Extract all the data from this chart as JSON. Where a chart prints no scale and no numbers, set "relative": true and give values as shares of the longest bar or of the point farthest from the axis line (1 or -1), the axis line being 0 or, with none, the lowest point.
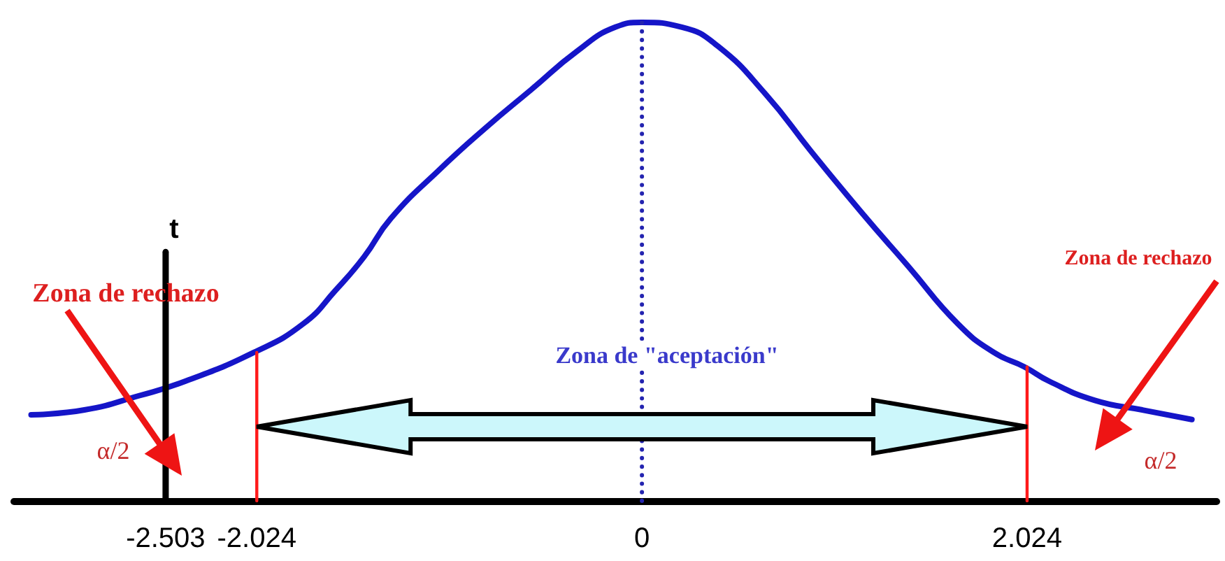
{
  "chart_data": {
    "type": "line",
    "relative": true,
    "marker": "none",
    "xlim": [
      -3.3,
      3.02
    ],
    "xticks": [
      -2.503,
      -2.024,
      0,
      2.024
    ],
    "series": [
      {
        "color": "#1515c8",
        "x": [
          -3.21,
          -2.93,
          -2.64,
          -2.4,
          -2.04,
          -1.78,
          -1.61,
          -1.46,
          -1.32,
          -1.07,
          -0.82,
          -0.58,
          -0.34,
          -0.14,
          0,
          0.21,
          0.4,
          0.65,
          0.89,
          1.16,
          1.4,
          1.66,
          1.85,
          2.01,
          2.14,
          2.38,
          2.63,
          2.89
        ],
        "values": [
          0.18,
          0.19,
          0.22,
          0.25,
          0.31,
          0.37,
          0.44,
          0.51,
          0.59,
          0.69,
          0.78,
          0.86,
          0.94,
          0.99,
          1,
          0.99,
          0.95,
          0.85,
          0.73,
          0.6,
          0.49,
          0.37,
          0.31,
          0.28,
          0.25,
          0.21,
          0.19,
          0.17
        ]
      },
      {
        "color": "#2424b0",
        "line_style": "dotted",
        "x": [
          0,
          0
        ],
        "values": [
          0,
          1
        ]
      },
      {
        "color": "#ff1a1a",
        "x": [
          -2.024,
          -2.024
        ],
        "values": [
          0,
          0.31
        ]
      },
      {
        "color": "#ff1a1a",
        "x": [
          2.024,
          2.024
        ],
        "values": [
          0,
          0.28
        ]
      },
      {
        "name": "t",
        "color": "#000000",
        "x": [
          -2.503,
          -2.503
        ],
        "values": [
          0,
          0.52
        ]
      }
    ],
    "annotations": [
      "Zona de rechazo",
      "α/2",
      "Zona de \"aceptación\"",
      "Zona de rechazo",
      "α/2"
    ]
  }
}
